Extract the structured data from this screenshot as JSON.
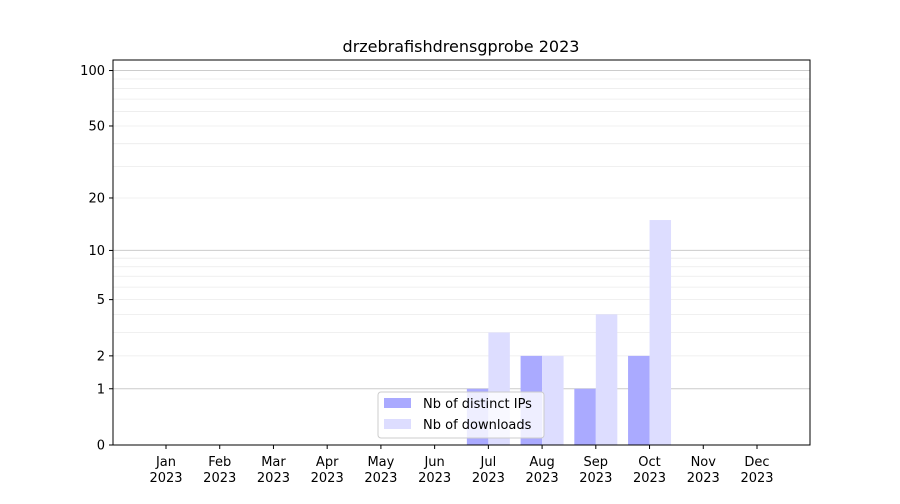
{
  "chart_data": {
    "type": "bar",
    "title": "drzebrafishdrensgprobe 2023",
    "xlabel": "",
    "ylabel": "",
    "y_scale": "log(1+y)",
    "ylim": [
      0,
      114
    ],
    "y_ticks": [
      0,
      1,
      2,
      5,
      10,
      20,
      50,
      100
    ],
    "grid": "horizontal",
    "legend_position": "bottom-center",
    "categories": [
      "Jan\n2023",
      "Feb\n2023",
      "Mar\n2023",
      "Apr\n2023",
      "May\n2023",
      "Jun\n2023",
      "Jul\n2023",
      "Aug\n2023",
      "Sep\n2023",
      "Oct\n2023",
      "Nov\n2023",
      "Dec\n2023"
    ],
    "series": [
      {
        "name": "Nb of distinct IPs",
        "color": "#aaaaff",
        "values": [
          0,
          0,
          0,
          0,
          0,
          0,
          1,
          2,
          1,
          2,
          0,
          0
        ]
      },
      {
        "name": "Nb of downloads",
        "color": "#ddddff",
        "values": [
          0,
          0,
          0,
          0,
          0,
          0,
          3,
          2,
          4,
          15,
          0,
          0
        ]
      }
    ]
  }
}
